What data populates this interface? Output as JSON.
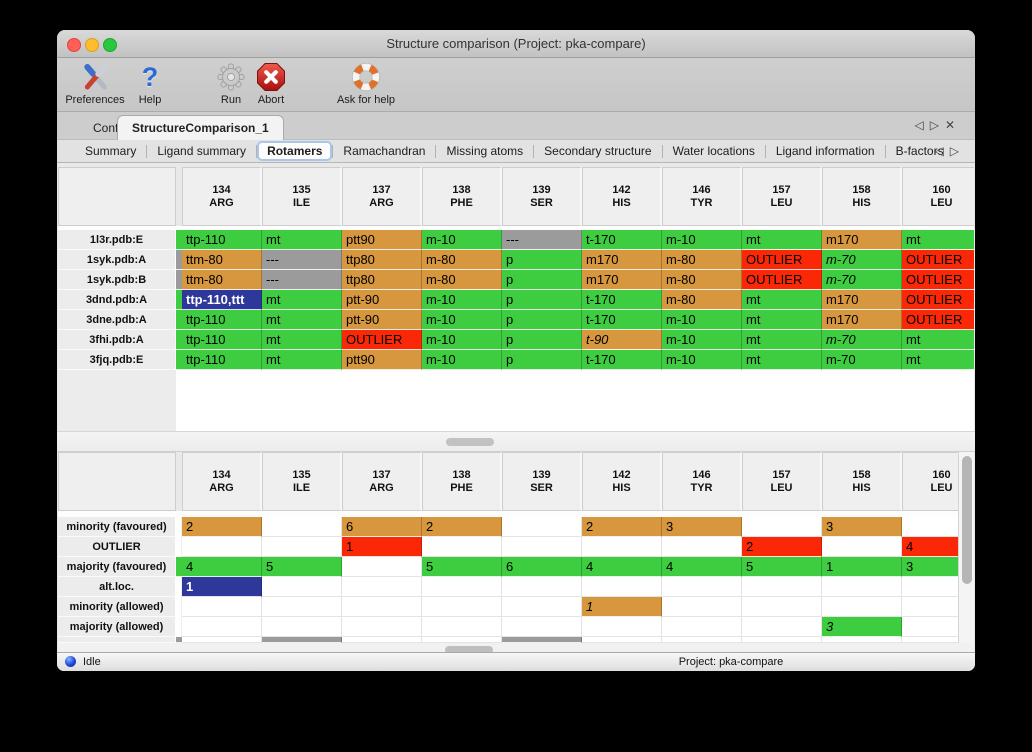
{
  "window": {
    "title": "Structure comparison (Project: pka-compare)"
  },
  "titlebar": {
    "buttons": [
      "close",
      "minimize",
      "zoom"
    ]
  },
  "toolbar": {
    "items": [
      {
        "label": "Preferences",
        "icon": "tools-icon"
      },
      {
        "label": "Help",
        "icon": "question-mark-icon",
        "glyph": "?"
      },
      {
        "label": "Run",
        "icon": "gear-icon"
      },
      {
        "label": "Abort",
        "icon": "abort-icon"
      },
      {
        "label": "Ask for help",
        "icon": "lifebuoy-icon"
      }
    ]
  },
  "main_tabs": {
    "items": [
      {
        "label": "Configure",
        "selected": false
      },
      {
        "label": "StructureComparison_1",
        "selected": true
      }
    ],
    "nav": {
      "left": "◁",
      "right": "▷",
      "close": "✕"
    }
  },
  "sub_tabs": {
    "items": [
      "Summary",
      "Ligand summary",
      "Rotamers",
      "Ramachandran",
      "Missing atoms",
      "Secondary structure",
      "Water locations",
      "Ligand information",
      "B-factors"
    ],
    "selected": "Rotamers",
    "nav": {
      "left": "◁",
      "right": "▷"
    }
  },
  "legend_colors": {
    "green": "#3ecd40",
    "orange": "#d6973f",
    "gray": "#9b9b9b",
    "red": "#fb2808",
    "blue": "#2e389b"
  },
  "columns": [
    {
      "num": "134",
      "res": "ARG"
    },
    {
      "num": "135",
      "res": "ILE"
    },
    {
      "num": "137",
      "res": "ARG"
    },
    {
      "num": "138",
      "res": "PHE"
    },
    {
      "num": "139",
      "res": "SER"
    },
    {
      "num": "142",
      "res": "HIS"
    },
    {
      "num": "146",
      "res": "TYR"
    },
    {
      "num": "157",
      "res": "LEU"
    },
    {
      "num": "158",
      "res": "HIS"
    },
    {
      "num": "160",
      "res": "LEU"
    }
  ],
  "top_table": {
    "rows": [
      {
        "label": "1l3r.pdb:E",
        "strip": "green",
        "cells": [
          {
            "t": "ttp-110",
            "c": "green"
          },
          {
            "t": "mt",
            "c": "green"
          },
          {
            "t": "ptt90",
            "c": "orange"
          },
          {
            "t": "m-10",
            "c": "green"
          },
          {
            "t": "---",
            "c": "gray"
          },
          {
            "t": "t-170",
            "c": "green"
          },
          {
            "t": "m-10",
            "c": "green"
          },
          {
            "t": "mt",
            "c": "green"
          },
          {
            "t": "m170",
            "c": "orange"
          },
          {
            "t": "mt",
            "c": "green"
          }
        ]
      },
      {
        "label": "1syk.pdb:A",
        "strip": "gray",
        "cells": [
          {
            "t": "ttm-80",
            "c": "orange"
          },
          {
            "t": "---",
            "c": "gray"
          },
          {
            "t": "ttp80",
            "c": "orange"
          },
          {
            "t": "m-80",
            "c": "orange"
          },
          {
            "t": "p",
            "c": "green"
          },
          {
            "t": "m170",
            "c": "orange"
          },
          {
            "t": "m-80",
            "c": "orange"
          },
          {
            "t": "OUTLIER",
            "c": "red"
          },
          {
            "t": "m-70",
            "c": "green",
            "i": true
          },
          {
            "t": "OUTLIER",
            "c": "red"
          }
        ]
      },
      {
        "label": "1syk.pdb:B",
        "strip": "gray",
        "cells": [
          {
            "t": "ttm-80",
            "c": "orange"
          },
          {
            "t": "---",
            "c": "gray"
          },
          {
            "t": "ttp80",
            "c": "orange"
          },
          {
            "t": "m-80",
            "c": "orange"
          },
          {
            "t": "p",
            "c": "green"
          },
          {
            "t": "m170",
            "c": "orange"
          },
          {
            "t": "m-80",
            "c": "orange"
          },
          {
            "t": "OUTLIER",
            "c": "red"
          },
          {
            "t": "m-70",
            "c": "green",
            "i": true
          },
          {
            "t": "OUTLIER",
            "c": "red"
          }
        ]
      },
      {
        "label": "3dnd.pdb:A",
        "strip": "green",
        "cells": [
          {
            "t": "ttp-110,ttt",
            "c": "blue"
          },
          {
            "t": "mt",
            "c": "green"
          },
          {
            "t": "ptt-90",
            "c": "orange"
          },
          {
            "t": "m-10",
            "c": "green"
          },
          {
            "t": "p",
            "c": "green"
          },
          {
            "t": "t-170",
            "c": "green"
          },
          {
            "t": "m-80",
            "c": "orange"
          },
          {
            "t": "mt",
            "c": "green"
          },
          {
            "t": "m170",
            "c": "orange"
          },
          {
            "t": "OUTLIER",
            "c": "red"
          }
        ]
      },
      {
        "label": "3dne.pdb:A",
        "strip": "green",
        "cells": [
          {
            "t": "ttp-110",
            "c": "green"
          },
          {
            "t": "mt",
            "c": "green"
          },
          {
            "t": "ptt-90",
            "c": "orange"
          },
          {
            "t": "m-10",
            "c": "green"
          },
          {
            "t": "p",
            "c": "green"
          },
          {
            "t": "t-170",
            "c": "green"
          },
          {
            "t": "m-10",
            "c": "green"
          },
          {
            "t": "mt",
            "c": "green"
          },
          {
            "t": "m170",
            "c": "orange"
          },
          {
            "t": "OUTLIER",
            "c": "red"
          }
        ]
      },
      {
        "label": "3fhi.pdb:A",
        "strip": "green",
        "cells": [
          {
            "t": "ttp-110",
            "c": "green"
          },
          {
            "t": "mt",
            "c": "green"
          },
          {
            "t": "OUTLIER",
            "c": "red"
          },
          {
            "t": "m-10",
            "c": "green"
          },
          {
            "t": "p",
            "c": "green"
          },
          {
            "t": "t-90",
            "c": "orange",
            "i": true
          },
          {
            "t": "m-10",
            "c": "green"
          },
          {
            "t": "mt",
            "c": "green"
          },
          {
            "t": "m-70",
            "c": "green",
            "i": true
          },
          {
            "t": "mt",
            "c": "green"
          }
        ]
      },
      {
        "label": "3fjq.pdb:E",
        "strip": "green",
        "cells": [
          {
            "t": "ttp-110",
            "c": "green"
          },
          {
            "t": "mt",
            "c": "green"
          },
          {
            "t": "ptt90",
            "c": "orange"
          },
          {
            "t": "m-10",
            "c": "green"
          },
          {
            "t": "p",
            "c": "green"
          },
          {
            "t": "t-170",
            "c": "green"
          },
          {
            "t": "m-10",
            "c": "green"
          },
          {
            "t": "mt",
            "c": "green"
          },
          {
            "t": "m-70",
            "c": "green"
          },
          {
            "t": "mt",
            "c": "green"
          }
        ]
      }
    ]
  },
  "bottom_table": {
    "rows": [
      {
        "label": "minority (favoured)",
        "strip": "none",
        "cells": [
          {
            "t": "2",
            "c": "orange"
          },
          {
            "t": "",
            "c": "white"
          },
          {
            "t": "6",
            "c": "orange"
          },
          {
            "t": "2",
            "c": "orange"
          },
          {
            "t": "",
            "c": "white"
          },
          {
            "t": "2",
            "c": "orange"
          },
          {
            "t": "3",
            "c": "orange"
          },
          {
            "t": "",
            "c": "white"
          },
          {
            "t": "3",
            "c": "orange"
          },
          {
            "t": "",
            "c": "white"
          }
        ]
      },
      {
        "label": "OUTLIER",
        "strip": "none",
        "cells": [
          {
            "t": "",
            "c": "white"
          },
          {
            "t": "",
            "c": "white"
          },
          {
            "t": "1",
            "c": "red"
          },
          {
            "t": "",
            "c": "white"
          },
          {
            "t": "",
            "c": "white"
          },
          {
            "t": "",
            "c": "white"
          },
          {
            "t": "",
            "c": "white"
          },
          {
            "t": "2",
            "c": "red"
          },
          {
            "t": "",
            "c": "white"
          },
          {
            "t": "4",
            "c": "red"
          }
        ]
      },
      {
        "label": "majority (favoured)",
        "strip": "green",
        "cells": [
          {
            "t": "4",
            "c": "green"
          },
          {
            "t": "5",
            "c": "green"
          },
          {
            "t": "",
            "c": "white"
          },
          {
            "t": "5",
            "c": "green"
          },
          {
            "t": "6",
            "c": "green"
          },
          {
            "t": "4",
            "c": "green"
          },
          {
            "t": "4",
            "c": "green"
          },
          {
            "t": "5",
            "c": "green"
          },
          {
            "t": "1",
            "c": "green"
          },
          {
            "t": "3",
            "c": "green"
          }
        ]
      },
      {
        "label": "alt.loc.",
        "strip": "none",
        "cells": [
          {
            "t": "1",
            "c": "blue"
          },
          {
            "t": "",
            "c": "white"
          },
          {
            "t": "",
            "c": "white"
          },
          {
            "t": "",
            "c": "white"
          },
          {
            "t": "",
            "c": "white"
          },
          {
            "t": "",
            "c": "white"
          },
          {
            "t": "",
            "c": "white"
          },
          {
            "t": "",
            "c": "white"
          },
          {
            "t": "",
            "c": "white"
          },
          {
            "t": "",
            "c": "white"
          }
        ]
      },
      {
        "label": "minority (allowed)",
        "strip": "none",
        "cells": [
          {
            "t": "",
            "c": "white"
          },
          {
            "t": "",
            "c": "white"
          },
          {
            "t": "",
            "c": "white"
          },
          {
            "t": "",
            "c": "white"
          },
          {
            "t": "",
            "c": "white"
          },
          {
            "t": "1",
            "c": "orange",
            "i": true
          },
          {
            "t": "",
            "c": "white"
          },
          {
            "t": "",
            "c": "white"
          },
          {
            "t": "",
            "c": "white"
          },
          {
            "t": "",
            "c": "white"
          }
        ]
      },
      {
        "label": "majority (allowed)",
        "strip": "none",
        "cells": [
          {
            "t": "",
            "c": "white"
          },
          {
            "t": "",
            "c": "white"
          },
          {
            "t": "",
            "c": "white"
          },
          {
            "t": "",
            "c": "white"
          },
          {
            "t": "",
            "c": "white"
          },
          {
            "t": "",
            "c": "white"
          },
          {
            "t": "",
            "c": "white"
          },
          {
            "t": "",
            "c": "white"
          },
          {
            "t": "3",
            "c": "green",
            "i": true
          },
          {
            "t": "",
            "c": "white"
          }
        ]
      }
    ],
    "partial_row": {
      "label": "",
      "strip": "gray",
      "cells": [
        {
          "t": "",
          "c": "white"
        },
        {
          "t": "",
          "c": "gray"
        },
        {
          "t": "",
          "c": "white"
        },
        {
          "t": "",
          "c": "white"
        },
        {
          "t": "",
          "c": "gray"
        },
        {
          "t": "",
          "c": "white"
        },
        {
          "t": "",
          "c": "white"
        },
        {
          "t": "",
          "c": "white"
        },
        {
          "t": "",
          "c": "white"
        },
        {
          "t": "",
          "c": "white"
        }
      ]
    }
  },
  "status_bar": {
    "state": "Idle",
    "project": "Project: pka-compare",
    "status_icon": "blue-sphere-icon"
  }
}
